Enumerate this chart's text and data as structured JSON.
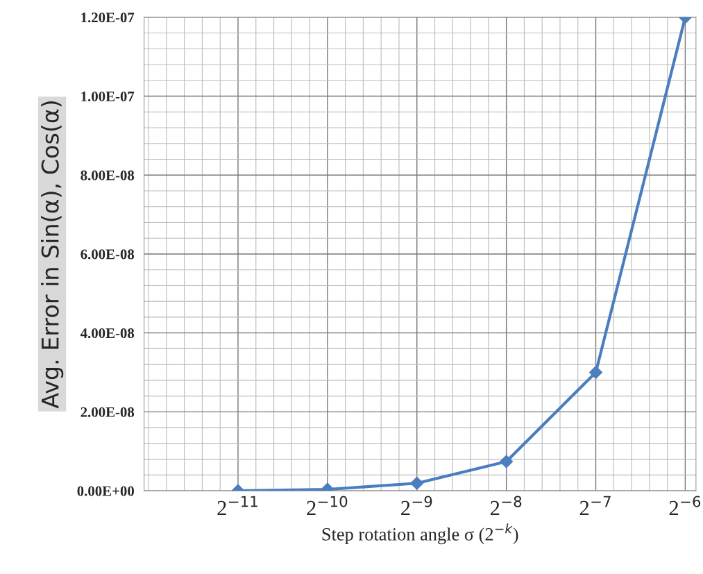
{
  "chart_data": {
    "type": "line",
    "xlabel": "Step rotation angle σ (2$^{−k}$)",
    "ylabel": "Avg. Error in Sin(α), Cos(α)",
    "categories": [
      "2$^{−11}$",
      "2$^{−10}$",
      "2$^{−9}$",
      "2$^{−8}$",
      "2$^{−7}$",
      "2$^{−6}$"
    ],
    "series": [
      {
        "color": "#4a7ebf",
        "values": [
          0,
          3.5e-10,
          1.9e-09,
          7.4e-09,
          3e-08,
          1.2e-07
        ]
      }
    ],
    "ylim": [
      0,
      1.2e-07
    ],
    "yticks": [
      {
        "value": 0,
        "label": "0.00E+00"
      },
      {
        "value": 2e-08,
        "label": "2.00E-08"
      },
      {
        "value": 4e-08,
        "label": "4.00E-08"
      },
      {
        "value": 6e-08,
        "label": "6.00E-08"
      },
      {
        "value": 8e-08,
        "label": "8.00E-08"
      },
      {
        "value": 1e-07,
        "label": "1.00E-07"
      },
      {
        "value": 1.2e-07,
        "label": "1.20E-07"
      }
    ],
    "grid": true,
    "marker": "diamond",
    "line_style": "solid"
  }
}
